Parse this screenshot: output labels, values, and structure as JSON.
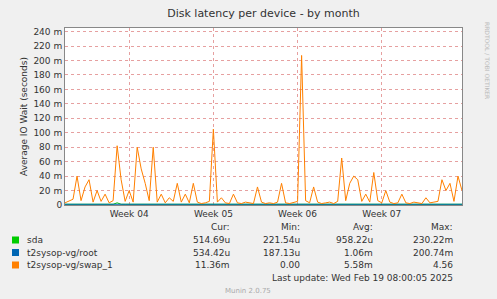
{
  "chart_data": {
    "type": "line",
    "title": "Disk latency per device - by month",
    "y_label": "Average IO Wait (seconds)",
    "grid": true,
    "categories": [
      null,
      null,
      null,
      null,
      null,
      null,
      null,
      null,
      null,
      null,
      null,
      null,
      null,
      null,
      null,
      null,
      "Week 04",
      null,
      null,
      null,
      null,
      null,
      null,
      null,
      null,
      null,
      null,
      null,
      null,
      null,
      null,
      null,
      null,
      null,
      null,
      null,
      null,
      "Week 05",
      null,
      null,
      null,
      null,
      null,
      null,
      null,
      null,
      null,
      null,
      null,
      null,
      null,
      null,
      null,
      null,
      null,
      null,
      null,
      null,
      "Week 06",
      null,
      null,
      null,
      null,
      null,
      null,
      null,
      null,
      null,
      null,
      null,
      null,
      null,
      null,
      null,
      null,
      null,
      null,
      null,
      null,
      "Week 07",
      null,
      null,
      null,
      null,
      null,
      null,
      null,
      null,
      null,
      null,
      null,
      null,
      null,
      null,
      null,
      null,
      null,
      null,
      null,
      null
    ],
    "ylim": [
      0,
      0.245
    ],
    "yticks": [
      0,
      {
        "value": 0.02,
        "label": "20 m"
      },
      {
        "value": 0.04,
        "label": "40 m"
      },
      {
        "value": 0.06,
        "label": "60 m"
      },
      {
        "value": 0.08,
        "label": "80 m"
      },
      {
        "value": 0.1,
        "label": "100 m"
      },
      {
        "value": 0.12,
        "label": "120 m"
      },
      {
        "value": 0.14,
        "label": "140 m"
      },
      {
        "value": 0.16,
        "label": "160 m"
      },
      {
        "value": 0.18,
        "label": "180 m"
      },
      {
        "value": 0.2,
        "label": "200 m"
      },
      {
        "value": 0.22,
        "label": "220 m"
      },
      {
        "value": 0.24,
        "label": "240 m"
      }
    ],
    "stats_columns": [
      "Cur:",
      "Min:",
      "Avg:",
      "Max:"
    ],
    "series": [
      {
        "name": "sda",
        "color": "#00cc00",
        "stats": [
          {
            "value": 0.00051469,
            "label": "514.69u"
          },
          {
            "value": 0.00022154,
            "label": "221.54u"
          },
          {
            "value": 0.00095822,
            "label": "958.22u"
          },
          {
            "value": 0.23022,
            "label": "230.22m"
          }
        ],
        "values": [
          0.001,
          0.001,
          0.001,
          0.002,
          0.001,
          0.001,
          0.002,
          0.001,
          0.001,
          0.001,
          0.001,
          0.001,
          0.001,
          0.003,
          0.001,
          0.001,
          0.001,
          0.001,
          0.002,
          0.002,
          0.001,
          0.001,
          0.002,
          0.001,
          0.001,
          0.001,
          0.001,
          0.001,
          0.001,
          0.001,
          0.001,
          0.001,
          0.001,
          0.001,
          0.001,
          0.001,
          0.001,
          0.002,
          0.001,
          0.001,
          0.001,
          0.001,
          0.001,
          0.001,
          0.001,
          0.001,
          0.001,
          0.001,
          0.001,
          0.001,
          0.001,
          0.001,
          0.001,
          0.001,
          0.001,
          0.001,
          0.001,
          0.001,
          0.001,
          0.002,
          0.001,
          0.001,
          0.001,
          0.001,
          0.001,
          0.001,
          0.001,
          0.001,
          0.001,
          0.002,
          0.001,
          0.001,
          0.001,
          0.001,
          0.001,
          0.001,
          0.001,
          0.002,
          0.001,
          0.001,
          0.001,
          0.001,
          0.001,
          0.001,
          0.001,
          0.001,
          0.001,
          0.001,
          0.001,
          0.001,
          0.001,
          0.001,
          0.001,
          0.001,
          0.001,
          0.001,
          0.001,
          0.001,
          0.001,
          0.001
        ]
      },
      {
        "name": "t2sysop-vg/root",
        "color": "#0066b3",
        "stats": [
          {
            "value": 0.00053442,
            "label": "534.42u"
          },
          {
            "value": 0.00018713,
            "label": "187.13u"
          },
          {
            "value": 0.00106,
            "label": "1.06m"
          },
          {
            "value": 0.20074,
            "label": "200.74m"
          }
        ],
        "values": [
          0.001,
          0.001,
          0.001,
          0.001,
          0.001,
          0.001,
          0.001,
          0.001,
          0.001,
          0.001,
          0.001,
          0.001,
          0.001,
          0.002,
          0.001,
          0.001,
          0.001,
          0.001,
          0.001,
          0.001,
          0.001,
          0.001,
          0.001,
          0.001,
          0.001,
          0.001,
          0.001,
          0.001,
          0.001,
          0.001,
          0.001,
          0.001,
          0.001,
          0.001,
          0.001,
          0.001,
          0.001,
          0.001,
          0.001,
          0.001,
          0.001,
          0.001,
          0.001,
          0.001,
          0.001,
          0.001,
          0.001,
          0.001,
          0.001,
          0.001,
          0.001,
          0.001,
          0.001,
          0.001,
          0.001,
          0.001,
          0.001,
          0.001,
          0.001,
          0.002,
          0.001,
          0.001,
          0.001,
          0.001,
          0.001,
          0.001,
          0.001,
          0.001,
          0.001,
          0.001,
          0.001,
          0.001,
          0.001,
          0.001,
          0.001,
          0.001,
          0.001,
          0.001,
          0.001,
          0.001,
          0.001,
          0.001,
          0.001,
          0.001,
          0.001,
          0.001,
          0.001,
          0.001,
          0.001,
          0.001,
          0.001,
          0.001,
          0.001,
          0.001,
          0.001,
          0.001,
          0.001,
          0.001,
          0.001,
          0.001
        ]
      },
      {
        "name": "t2sysop-vg/swap_1",
        "color": "#ff8000",
        "stats": [
          {
            "value": 0.01136,
            "label": "11.36m"
          },
          {
            "value": 0,
            "label": "0.00"
          },
          {
            "value": 0.00558,
            "label": "5.58m"
          },
          4.56
        ],
        "values": [
          0.003,
          0.005,
          0.008,
          0.04,
          0.006,
          0.025,
          0.035,
          0.004,
          0.02,
          0.005,
          0.015,
          0.003,
          0.006,
          0.082,
          0.035,
          0.005,
          0.02,
          0.004,
          0.08,
          0.05,
          0.03,
          0.006,
          0.08,
          0.004,
          0.015,
          0.003,
          0.01,
          0.005,
          0.03,
          0.004,
          0.015,
          0.003,
          0.03,
          0.004,
          0.002,
          0.003,
          0.005,
          0.105,
          0.004,
          0.01,
          0.003,
          0.002,
          0.015,
          0.003,
          0.002,
          0.004,
          0.003,
          0.002,
          0.025,
          0.004,
          0.002,
          0.003,
          0.002,
          0.004,
          0.03,
          0.003,
          0.002,
          0.003,
          0.005,
          0.207,
          0.006,
          0.003,
          0.025,
          0.004,
          0.002,
          0.003,
          0.004,
          0.002,
          0.005,
          0.065,
          0.006,
          0.03,
          0.04,
          0.035,
          0.005,
          0.015,
          0.004,
          0.045,
          0.006,
          0.003,
          0.02,
          0.004,
          0.002,
          0.003,
          0.015,
          0.003,
          0.002,
          0.004,
          0.003,
          0.002,
          0.01,
          0.003,
          0.004,
          0.005,
          0.035,
          0.02,
          0.03,
          0.005,
          0.04,
          0.02
        ]
      }
    ],
    "footer": "Last update: Wed Feb 19 08:00:05 2025",
    "credit": "Munin 2.0.75",
    "watermark": "RRDTOOL / TOBI OETIKER"
  }
}
